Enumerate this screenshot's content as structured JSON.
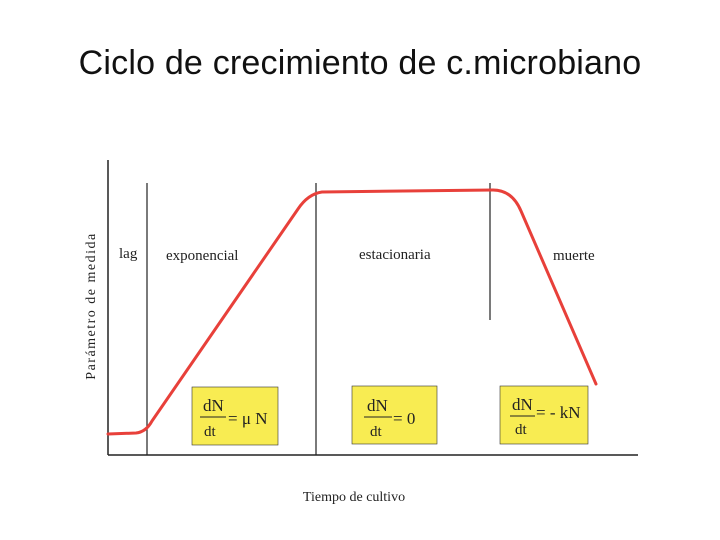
{
  "title": "Ciclo de crecimiento de c.microbiano",
  "axes": {
    "ylabel": "Parámetro de medida",
    "xlabel": "Tiempo de cultivo"
  },
  "phases": [
    {
      "label": "lag"
    },
    {
      "label": "exponencial"
    },
    {
      "label": "estacionaria"
    },
    {
      "label": "muerte"
    }
  ],
  "equations": [
    {
      "numerator": "dN",
      "denominator": "dt",
      "rhs": "= μ N"
    },
    {
      "numerator": "dN",
      "denominator": "dt",
      "rhs": "= 0"
    },
    {
      "numerator": "dN",
      "denominator": "dt",
      "rhs": "= - kN"
    }
  ],
  "colors": {
    "curve": "#e8403a",
    "equation_box": "#f8ec52",
    "axis": "#222222"
  }
}
